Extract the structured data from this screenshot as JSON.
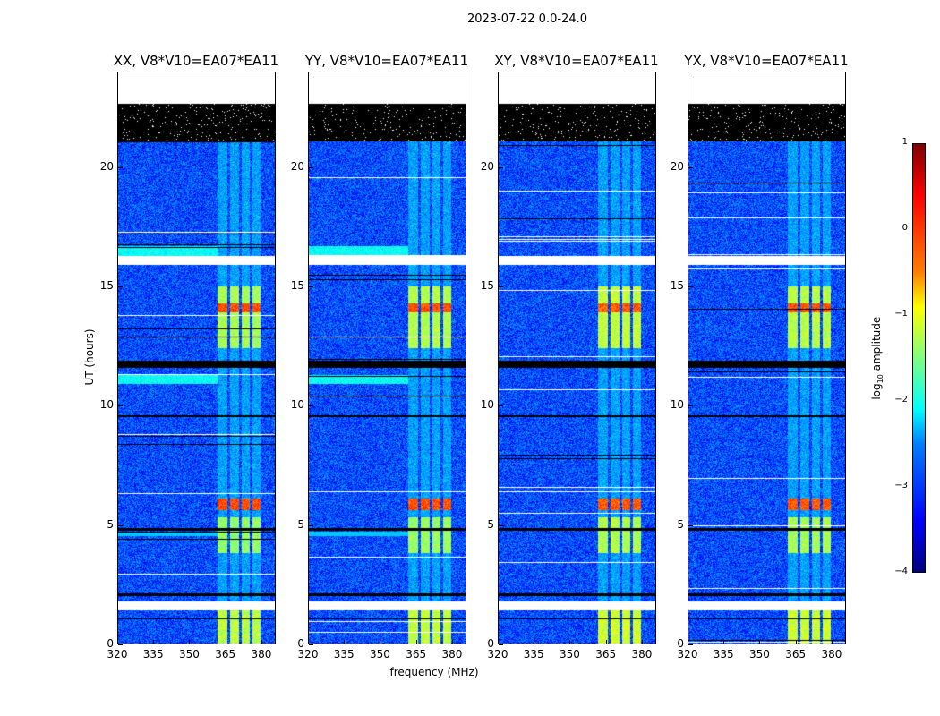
{
  "suptitle": "2023-07-22 0.0-24.0",
  "chart_data": {
    "type": "heatmap",
    "title": "2023-07-22 0.0-24.0",
    "xlabel": "frequency (MHz)",
    "ylabel": "UT (hours)",
    "xlim": [
      320,
      386
    ],
    "ylim": [
      0,
      24
    ],
    "xticks": [
      "320",
      "335",
      "350",
      "365",
      "380"
    ],
    "yticks": [
      "0",
      "5",
      "10",
      "15",
      "20"
    ],
    "panels": [
      {
        "title": "XX, V8*V10=EA07*EA11",
        "strength": 1.0,
        "lowband": true
      },
      {
        "title": "YY, V8*V10=EA07*EA11",
        "strength": 0.95,
        "lowband": true
      },
      {
        "title": "XY, V8*V10=EA07*EA11",
        "strength": 0.85,
        "lowband": false
      },
      {
        "title": "YX, V8*V10=EA07*EA11",
        "strength": 0.9,
        "lowband": false
      }
    ],
    "colorbar": {
      "label": "log10 amplitude",
      "label_main": "log",
      "label_sub": "10",
      "label_rest": " amplitude",
      "range": [
        -4,
        1
      ],
      "ticks": [
        "1",
        "0",
        "−1",
        "−2",
        "−3",
        "−4"
      ]
    },
    "flagged_hours_white": [
      [
        22.7,
        24
      ],
      [
        15.9,
        16.3
      ],
      [
        1.4,
        1.75
      ]
    ],
    "flagged_hours_black": [
      [
        21.1,
        22.7
      ],
      [
        11.6,
        11.9
      ],
      [
        9.5,
        9.6
      ],
      [
        4.75,
        4.85
      ],
      [
        2.0,
        2.1
      ],
      [
        1.0,
        1.05
      ]
    ],
    "rfi_channels_MHz": [
      [
        362,
        366
      ],
      [
        367,
        371
      ],
      [
        372,
        375.5
      ],
      [
        376.5,
        380
      ]
    ],
    "rfi_bursts": [
      {
        "hours": [
          5.6,
          6.1
        ],
        "log_amp": 0.0
      },
      {
        "hours": [
          13.9,
          14.3
        ],
        "log_amp": 0.0
      },
      {
        "hours": [
          12.4,
          15.0
        ],
        "log_amp": -1.3
      },
      {
        "hours": [
          3.8,
          5.3
        ],
        "log_amp": -1.4
      },
      {
        "hours": [
          0.0,
          1.4
        ],
        "log_amp": -1.2
      }
    ],
    "background_log_amp": -3.0
  }
}
